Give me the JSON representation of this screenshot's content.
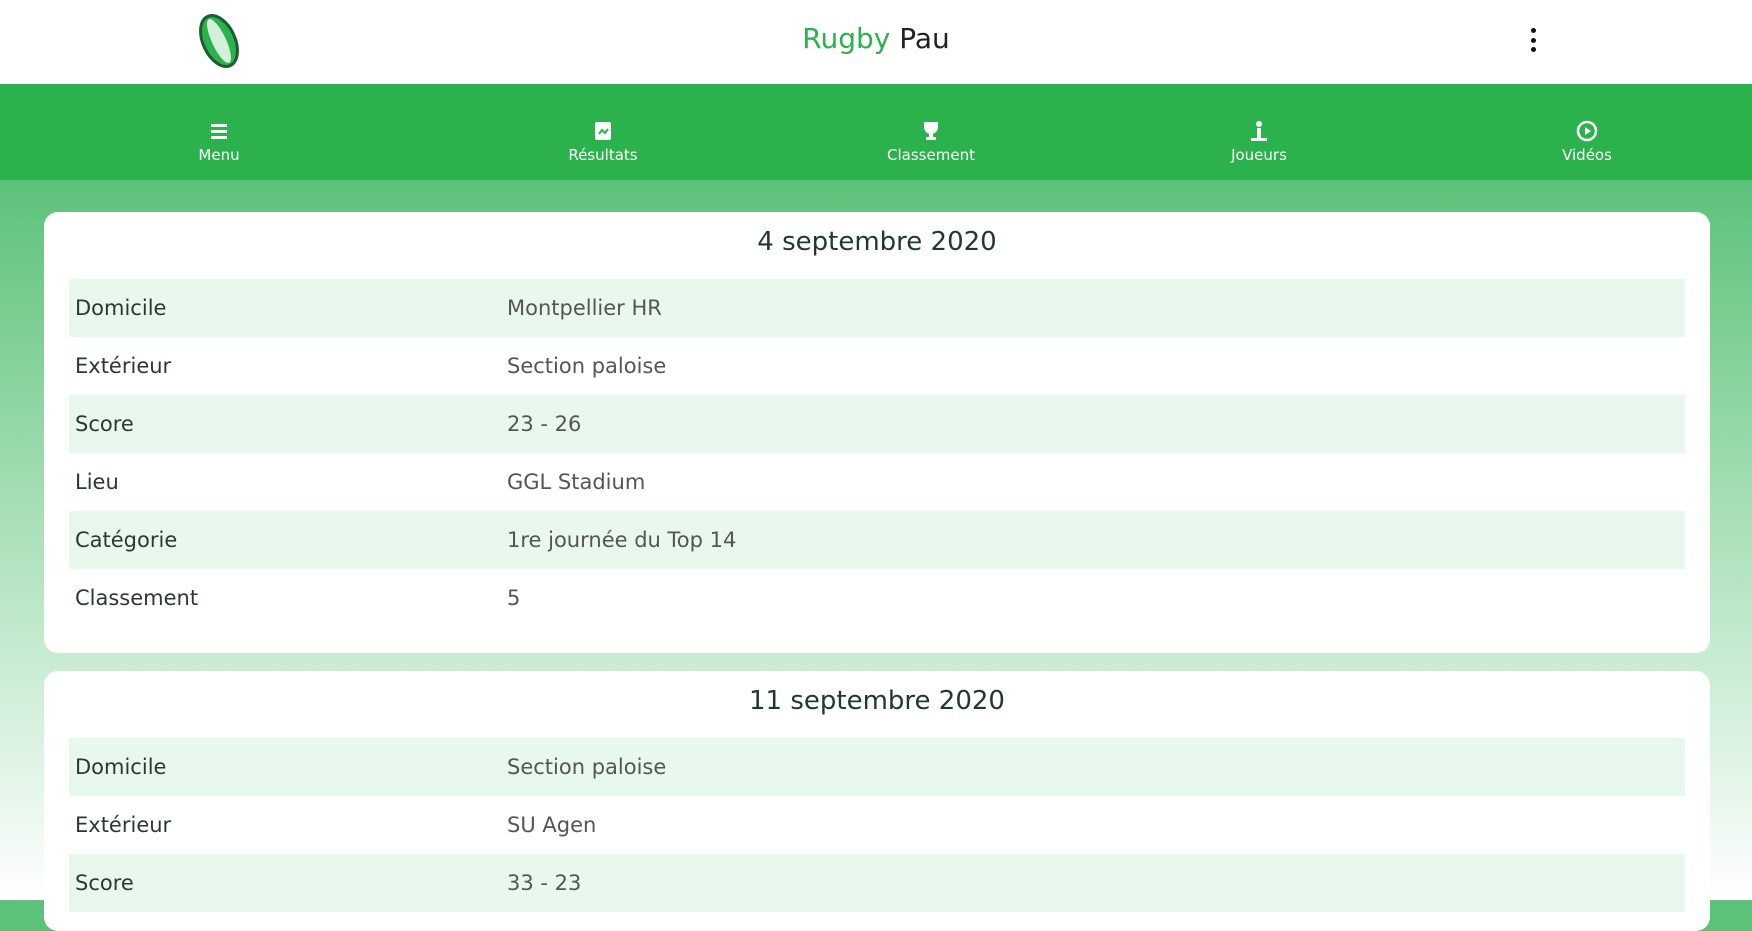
{
  "header": {
    "title_green": "Rugby",
    "title_dark": "Pau",
    "logo": "rugby-ball-icon",
    "menu_icon": "kebab-icon"
  },
  "colors": {
    "brand": "#2bb24c",
    "row_stripe": "#e8f8ec"
  },
  "nav": [
    {
      "label": "Menu",
      "icon": "hamburger-icon"
    },
    {
      "label": "Résultats",
      "icon": "results-icon"
    },
    {
      "label": "Classement",
      "icon": "trophy-icon"
    },
    {
      "label": "Joueurs",
      "icon": "player-icon"
    },
    {
      "label": "Vidéos",
      "icon": "play-icon"
    }
  ],
  "matches": [
    {
      "date": "4 septembre 2020",
      "rows": [
        {
          "label": "Domicile",
          "value": "Montpellier HR"
        },
        {
          "label": "Extérieur",
          "value": "Section paloise"
        },
        {
          "label": "Score",
          "value": "23 - 26"
        },
        {
          "label": "Lieu",
          "value": "GGL Stadium"
        },
        {
          "label": "Catégorie",
          "value": "1re journée du Top 14"
        },
        {
          "label": "Classement",
          "value": "5"
        }
      ]
    },
    {
      "date": "11 septembre 2020",
      "rows": [
        {
          "label": "Domicile",
          "value": "Section paloise"
        },
        {
          "label": "Extérieur",
          "value": "SU Agen"
        },
        {
          "label": "Score",
          "value": "33 - 23"
        }
      ]
    }
  ]
}
